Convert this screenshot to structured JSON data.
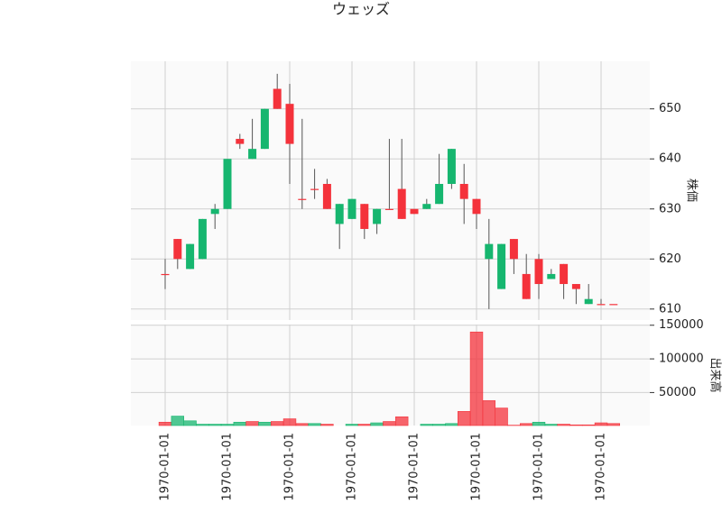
{
  "chart_data": {
    "type": "candlestick",
    "title": "ウェッズ",
    "ylabel": "株価",
    "volume_label": "出来高",
    "categories": [
      "1970-01-01",
      null,
      null,
      null,
      null,
      "1970-01-01",
      null,
      null,
      null,
      null,
      "1970-01-01",
      null,
      null,
      null,
      null,
      "1970-01-01",
      null,
      null,
      null,
      null,
      "1970-01-01",
      null,
      null,
      null,
      null,
      "1970-01-01",
      null,
      null,
      null,
      null,
      "1970-01-01",
      null,
      null,
      null,
      null,
      "1970-01-01",
      null
    ],
    "open": [
      617,
      624,
      618,
      620,
      629,
      630,
      644,
      640,
      642,
      654,
      651,
      632,
      634,
      635,
      627,
      628,
      631,
      627,
      630,
      634,
      630,
      630,
      631,
      635,
      635,
      632,
      620,
      614,
      624,
      617,
      620,
      616,
      619,
      615,
      611,
      611,
      611
    ],
    "high": [
      620,
      624,
      623,
      628,
      631,
      640,
      645,
      648,
      650,
      657,
      655,
      648,
      638,
      636,
      631,
      632,
      631,
      630,
      644,
      644,
      630,
      632,
      641,
      642,
      639,
      632,
      628,
      623,
      624,
      621,
      621,
      618,
      619,
      615,
      615,
      612,
      611
    ],
    "low": [
      614,
      618,
      618,
      620,
      626,
      630,
      642,
      640,
      642,
      650,
      635,
      630,
      632,
      630,
      622,
      628,
      624,
      625,
      630,
      628,
      629,
      630,
      631,
      634,
      627,
      626,
      610,
      614,
      617,
      612,
      612,
      616,
      612,
      611,
      611,
      611,
      611
    ],
    "close": [
      617,
      620,
      623,
      628,
      630,
      640,
      643,
      642,
      650,
      650,
      643,
      632,
      634,
      630,
      631,
      632,
      626,
      630,
      630,
      628,
      629,
      631,
      635,
      642,
      632,
      629,
      623,
      623,
      620,
      612,
      615,
      617,
      615,
      614,
      612,
      611,
      611
    ],
    "volume": [
      6000,
      15000,
      8000,
      3000,
      3000,
      3000,
      6000,
      7000,
      6000,
      7000,
      11000,
      4000,
      4000,
      3000,
      1000,
      3000,
      3000,
      5000,
      7000,
      14000,
      1000,
      3000,
      3000,
      4000,
      22000,
      140000,
      38000,
      27000,
      1500,
      4000,
      6000,
      3000,
      3000,
      2000,
      2000,
      5000,
      4000
    ],
    "up_color": "#16b66f",
    "down_color": "#f4323b",
    "ylim": [
      607.8,
      659.5
    ],
    "yticks": [
      610,
      620,
      630,
      640,
      650
    ],
    "volume_ylim": [
      1000,
      151000
    ],
    "volume_yticks": [
      50000,
      100000,
      150000
    ],
    "grid": true
  }
}
